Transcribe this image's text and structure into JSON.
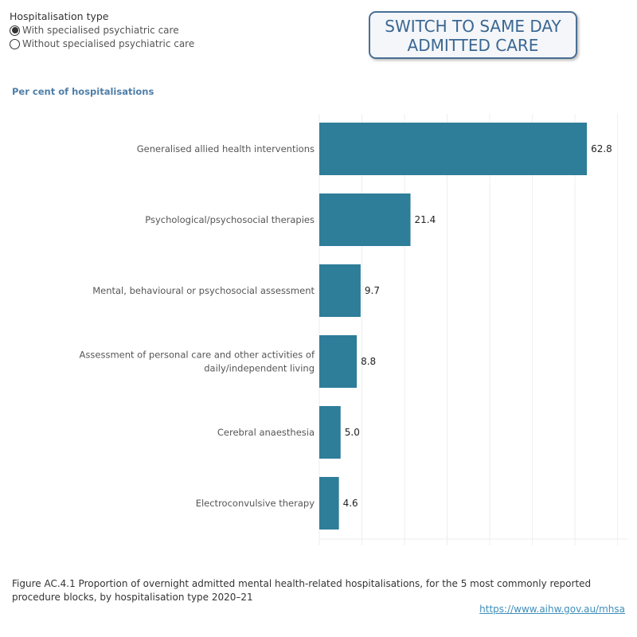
{
  "filter": {
    "title": "Hospitalisation type",
    "options": [
      {
        "label": "With specialised psychiatric care",
        "selected": true
      },
      {
        "label": "Without specialised psychiatric care",
        "selected": false
      }
    ]
  },
  "switch_button": {
    "line1": "SWITCH TO SAME DAY",
    "line2": "ADMITTED CARE"
  },
  "chart_data": {
    "type": "bar",
    "orientation": "horizontal",
    "ylabel": "Per cent of hospitalisations",
    "categories": [
      [
        "Generalised allied health interventions"
      ],
      [
        "Psychological/psychosocial therapies"
      ],
      [
        "Mental, behavioural or psychosocial assessment"
      ],
      [
        "Assessment of personal care and other activities of",
        "daily/independent living"
      ],
      [
        "Cerebral anaesthesia"
      ],
      [
        "Electroconvulsive therapy"
      ]
    ],
    "values": [
      62.8,
      21.4,
      9.7,
      8.8,
      5.0,
      4.6
    ],
    "value_labels": [
      "62.8",
      "21.4",
      "9.7",
      "8.8",
      "5.0",
      "4.6"
    ],
    "xlim": [
      0,
      72.5
    ],
    "grid_step": 10,
    "grid": true,
    "color": "#2e7d99"
  },
  "caption": "Figure AC.4.1 Proportion of overnight admitted mental health-related hospitalisations, for the 5 most commonly reported procedure blocks, by hospitalisation type 2020–21",
  "link": "https://www.aihw.gov.au/mhsa"
}
